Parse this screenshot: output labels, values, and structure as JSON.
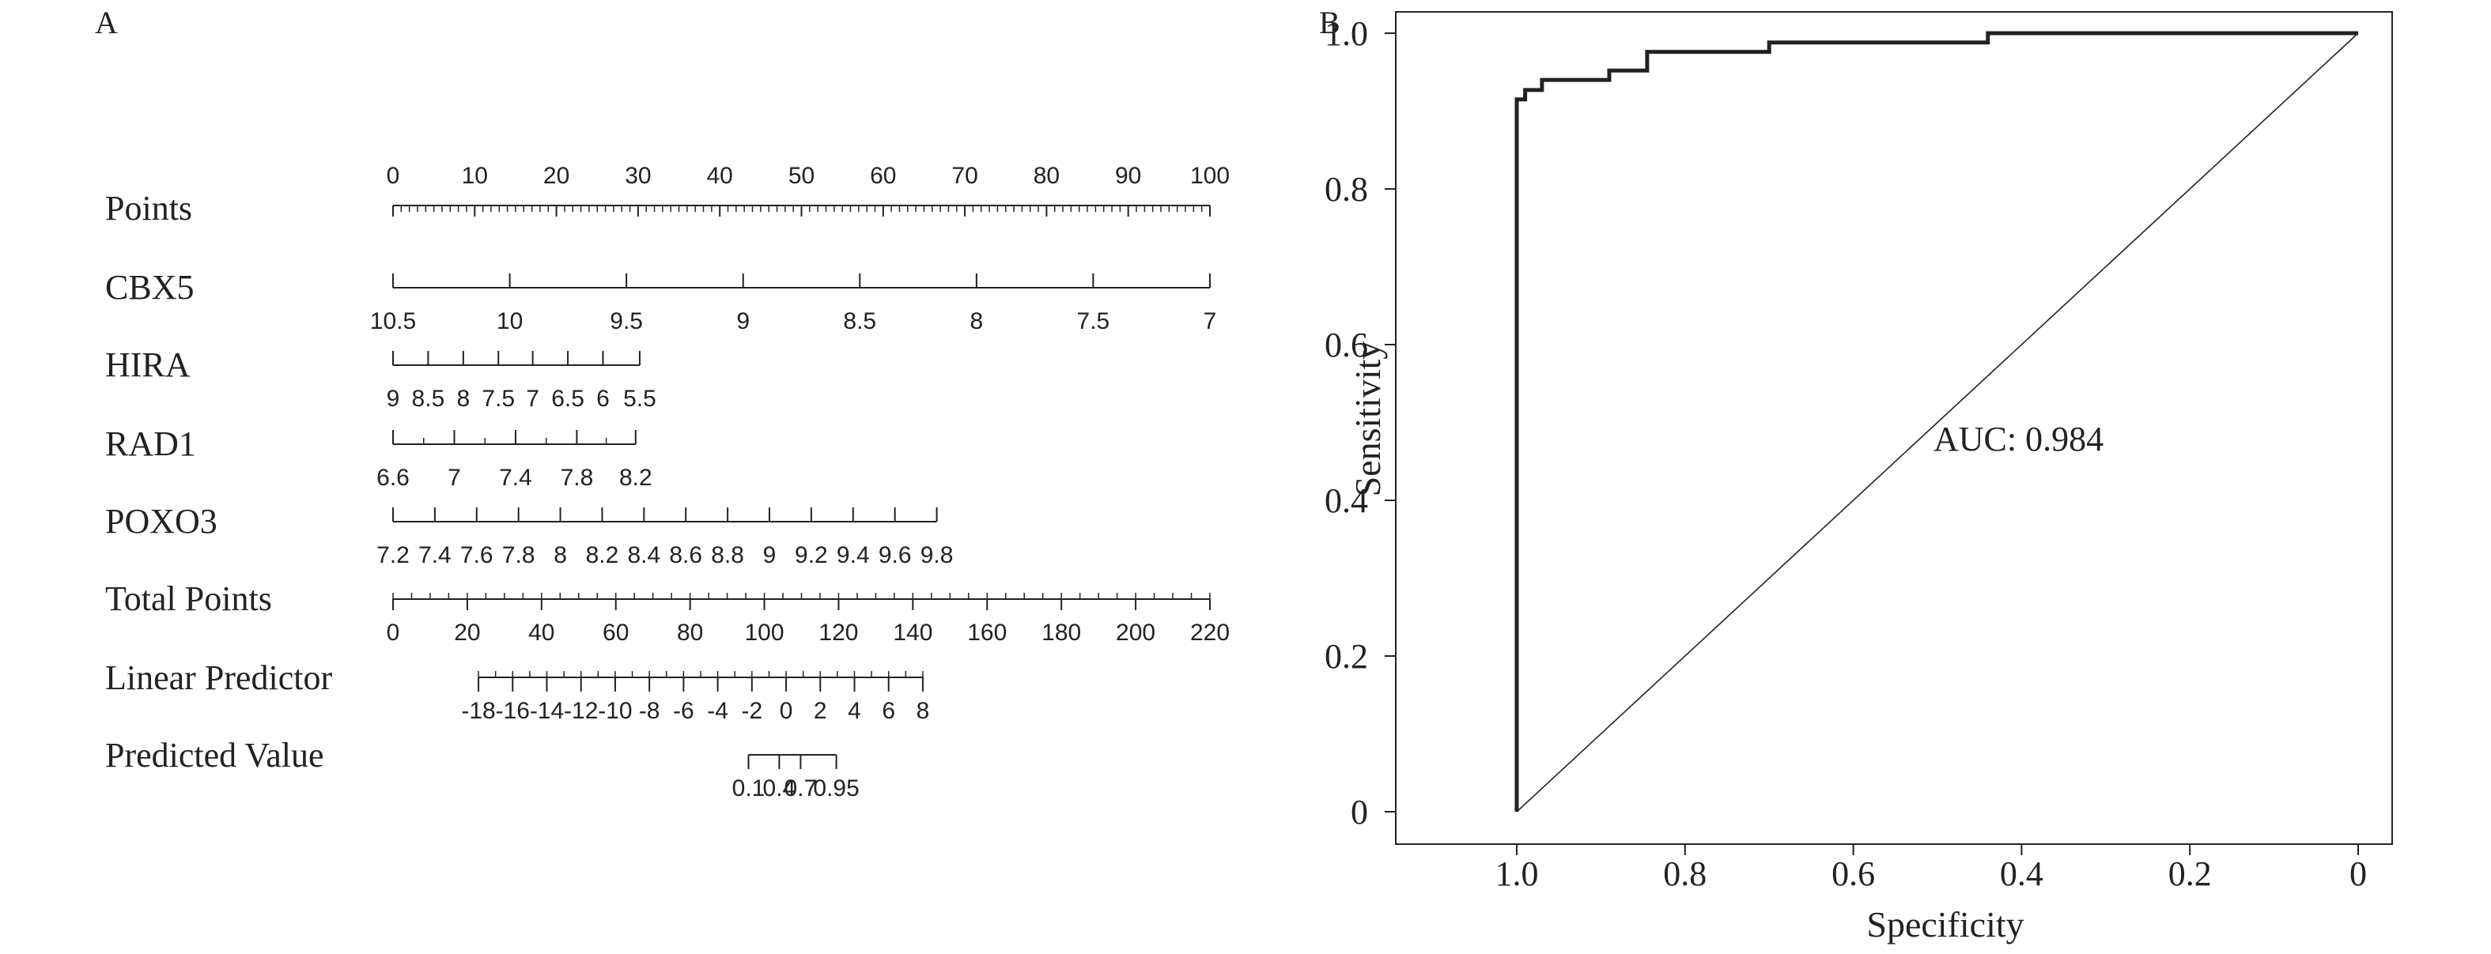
{
  "panels": {
    "a": {
      "label": "A",
      "nomogram": {
        "rows": [
          {
            "label": "Points",
            "ticks": [
              "0",
              "10",
              "20",
              "30",
              "40",
              "50",
              "60",
              "70",
              "80",
              "90",
              "100"
            ],
            "tick_pos": [
              0,
              10,
              20,
              30,
              40,
              50,
              60,
              70,
              80,
              90,
              100
            ],
            "minor": 1
          },
          {
            "label": "CBX5",
            "ticks": [
              "10.5",
              "10",
              "9.5",
              "9",
              "8.5",
              "8",
              "7.5",
              "7"
            ],
            "tick_pos": [
              0,
              14.29,
              28.57,
              42.86,
              57.14,
              71.43,
              85.71,
              100
            ]
          },
          {
            "label": "HIRA",
            "ticks": [
              "9",
              "8.5",
              "8",
              "7.5",
              "7",
              "6.5",
              "6",
              "5.5"
            ],
            "tick_pos": [
              0,
              4.3,
              8.6,
              12.9,
              17.1,
              21.4,
              25.7,
              30.2
            ]
          },
          {
            "label": "RAD1",
            "ticks": [
              "6.6",
              "7",
              "7.4",
              "7.8",
              "8.2"
            ],
            "tick_pos": [
              0,
              7.5,
              15.0,
              22.5,
              29.7
            ],
            "minor_between": true
          },
          {
            "label": "POXO3",
            "ticks": [
              "7.2",
              "7.4",
              "7.6",
              "7.8",
              "8",
              "8.2",
              "8.4",
              "8.6",
              "8.8",
              "9",
              "9.2",
              "9.4",
              "9.6",
              "9.8"
            ],
            "tick_pos": [
              0,
              5.12,
              10.24,
              15.36,
              20.48,
              25.6,
              30.72,
              35.84,
              40.96,
              46.08,
              51.2,
              56.32,
              61.44,
              66.56
            ]
          },
          {
            "label": "Total Points",
            "ticks": [
              "0",
              "20",
              "40",
              "60",
              "80",
              "100",
              "120",
              "140",
              "160",
              "180",
              "200",
              "220"
            ],
            "tick_pos": [
              0,
              20,
              40,
              60,
              80,
              100,
              120,
              140,
              160,
              180,
              200,
              220
            ],
            "domain": [
              0,
              220
            ],
            "minor": 5
          },
          {
            "label": "Linear Predictor",
            "ticks": [
              "-18",
              "-16",
              "-14",
              "-12",
              "-10",
              "-8",
              "-6",
              "-4",
              "-2",
              "0",
              "2",
              "4",
              "6",
              "8"
            ],
            "tick_pos": [
              -18,
              -16,
              -14,
              -12,
              -10,
              -8,
              -6,
              -4,
              -2,
              0,
              2,
              4,
              6,
              8
            ],
            "domain": [
              -23,
              24.8
            ],
            "minor": 1
          },
          {
            "label": "Predicted Value",
            "ticks": [
              "0.1",
              "0.4",
              "0.7",
              "0.95"
            ],
            "tick_pos": [
              -2.2,
              -0.4,
              0.85,
              2.94
            ],
            "domain": [
              -23,
              24.8
            ],
            "from_domain": true
          }
        ]
      }
    },
    "b": {
      "label": "B",
      "annotation": "AUC: 0.984"
    }
  },
  "chart_data": [
    {
      "type": "nomogram",
      "rows": [
        {
          "name": "Points",
          "scale": "0 to 100"
        },
        {
          "name": "CBX5",
          "values": [
            10.5,
            10,
            9.5,
            9,
            8.5,
            8,
            7.5,
            7
          ]
        },
        {
          "name": "HIRA",
          "values": [
            9,
            8.5,
            8,
            7.5,
            7,
            6.5,
            6,
            5.5
          ]
        },
        {
          "name": "RAD1",
          "values": [
            6.6,
            7,
            7.4,
            7.8,
            8.2
          ]
        },
        {
          "name": "POXO3",
          "values": [
            7.2,
            7.4,
            7.6,
            7.8,
            8,
            8.2,
            8.4,
            8.6,
            8.8,
            9,
            9.2,
            9.4,
            9.6,
            9.8
          ]
        },
        {
          "name": "Total Points",
          "values": [
            0,
            20,
            40,
            60,
            80,
            100,
            120,
            140,
            160,
            180,
            200,
            220
          ]
        },
        {
          "name": "Linear Predictor",
          "values": [
            -18,
            -16,
            -14,
            -12,
            -10,
            -8,
            -6,
            -4,
            -2,
            0,
            2,
            4,
            6,
            8
          ]
        },
        {
          "name": "Predicted Value",
          "values": [
            0.1,
            0.4,
            0.7,
            0.95
          ]
        }
      ]
    },
    {
      "type": "line",
      "xlabel": "Specificity",
      "ylabel": "Sensitivity",
      "xlim": [
        1.0,
        0
      ],
      "ylim": [
        0,
        1.0
      ],
      "x_ticks": [
        "1.0",
        "0.8",
        "0.6",
        "0.4",
        "0.2",
        "0"
      ],
      "y_ticks": [
        "0",
        "0.2",
        "0.4",
        "0.6",
        "0.8",
        "1.0"
      ],
      "annotation": "AUC: 0.984",
      "series": [
        {
          "points": [
            [
              1.0,
              0.0
            ],
            [
              1.0,
              0.915
            ],
            [
              0.99,
              0.915
            ],
            [
              0.99,
              0.927
            ],
            [
              0.97,
              0.927
            ],
            [
              0.97,
              0.94
            ],
            [
              0.89,
              0.94
            ],
            [
              0.89,
              0.952
            ],
            [
              0.845,
              0.952
            ],
            [
              0.845,
              0.976
            ],
            [
              0.7,
              0.976
            ],
            [
              0.7,
              0.988
            ],
            [
              0.44,
              0.988
            ],
            [
              0.44,
              1.0
            ],
            [
              0.0,
              1.0
            ]
          ]
        }
      ],
      "reference_line": [
        [
          1.0,
          0.0
        ],
        [
          0.0,
          1.0
        ]
      ]
    }
  ]
}
